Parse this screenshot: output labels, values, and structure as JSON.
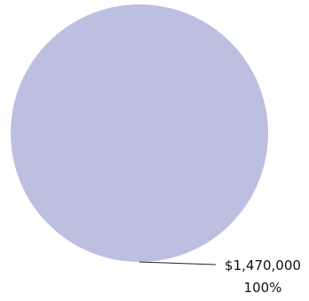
{
  "chart_data": {
    "type": "pie",
    "slices": [
      {
        "value": 1470000,
        "value_label": "$1,470,000",
        "percent_label": "100%",
        "color": "#bcbfe0"
      }
    ],
    "title": "",
    "legend": "none"
  }
}
